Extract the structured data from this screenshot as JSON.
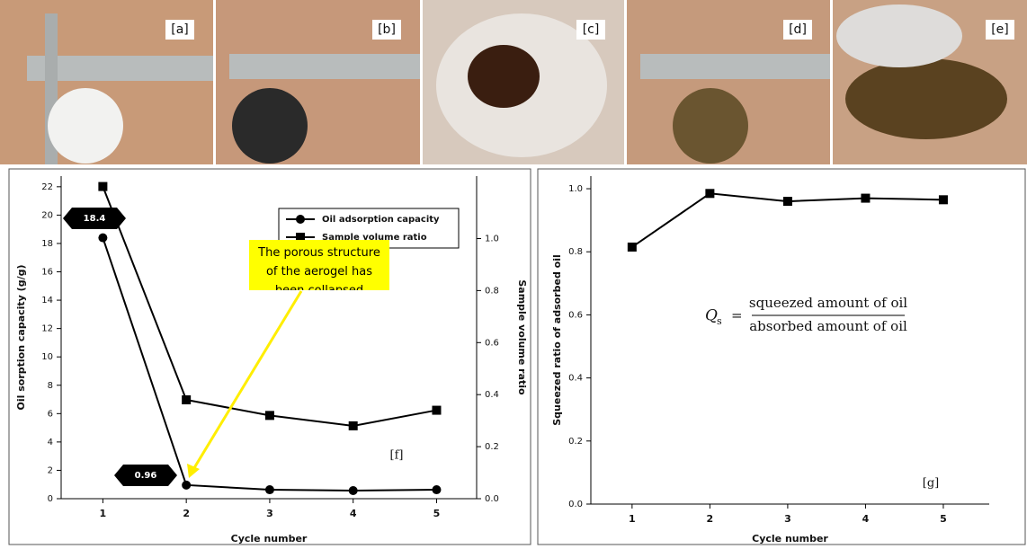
{
  "panels": [
    "[a]",
    "[b]",
    "[c]",
    "[d]",
    "[e]"
  ],
  "chart_data": [
    {
      "type": "line",
      "x_label": "Cycle number",
      "y_label": "Oil sorption capacity (g/g)",
      "y2_label": "Sample volume ratio",
      "x": [
        1,
        2,
        3,
        4,
        5
      ],
      "xlim": [
        0.5,
        5.48
      ],
      "xticks": [
        1,
        2,
        3,
        4,
        5
      ],
      "ylim": [
        0,
        22.75
      ],
      "yticks": [
        0,
        2,
        4,
        6,
        8,
        10,
        12,
        14,
        16,
        18,
        20,
        22
      ],
      "y2lim": [
        0,
        1.24
      ],
      "y2ticks": [
        {
          "value": 0,
          "label": "0.0"
        },
        0.2,
        0.4,
        0.6,
        0.8,
        {
          "value": 1,
          "label": "1.0"
        }
      ],
      "series": [
        {
          "name": "Oil adsorption capacity",
          "color": "#000000",
          "marker": "circle",
          "values": [
            18.4,
            0.96,
            0.63,
            0.57,
            0.63
          ]
        },
        {
          "name": "Sample volume ratio",
          "color": "#000000",
          "marker": "square",
          "axis": "y2",
          "values": [
            1.2,
            0.38,
            0.32,
            0.28,
            0.34
          ]
        }
      ],
      "annotations": [
        {
          "text": "18.4",
          "style": "badge"
        },
        {
          "text": "0.96",
          "style": "badge"
        },
        {
          "text": "The porous structure of the aerogel has been collapsed",
          "style": "callout"
        },
        {
          "text": "[f]",
          "style": "plain"
        }
      ]
    },
    {
      "type": "line",
      "x_label": "Cycle number",
      "y_label": "Squeezed ratio of adsorbed oil",
      "x": [
        1,
        2,
        3,
        4,
        5
      ],
      "xlim": [
        0.47,
        5.59
      ],
      "xticks": [
        1,
        2,
        3,
        4,
        5
      ],
      "ylim": [
        0,
        1.04
      ],
      "yticks": [
        {
          "value": 0,
          "label": "0.0"
        },
        0.2,
        0.4,
        0.6,
        0.8,
        {
          "value": 1,
          "label": "1.0"
        }
      ],
      "series": [
        {
          "name": null,
          "color": "#000000",
          "marker": "square",
          "values": [
            0.815,
            0.985,
            0.96,
            0.97,
            0.965
          ]
        }
      ],
      "formula": {
        "symbol": "Q",
        "subscript": "s",
        "equals": "=",
        "numerator": "squeezed amount of oil",
        "denominator": "absorbed amount of oil"
      },
      "annotations": [
        {
          "text": "[g]",
          "style": "plain"
        }
      ]
    }
  ]
}
